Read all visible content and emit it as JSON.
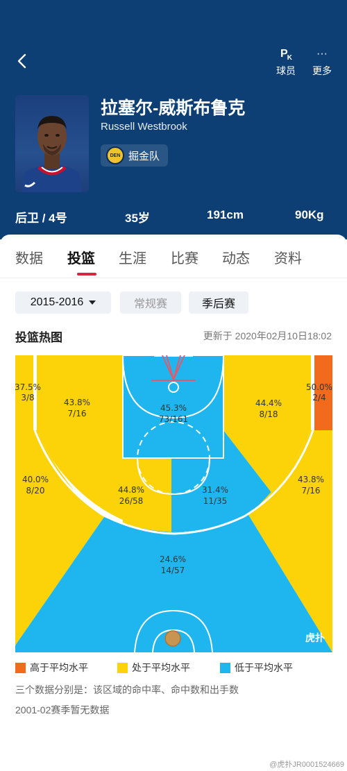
{
  "header": {
    "actions": [
      {
        "label": "球员",
        "icon": "pk-icon",
        "icon_text": "P",
        "icon_sub": "K"
      },
      {
        "label": "更多",
        "icon": "more-icon",
        "icon_text": "···"
      }
    ],
    "name_cn": "拉塞尔-威斯布鲁克",
    "name_en": "Russell Westbrook",
    "team": {
      "name": "掘金队",
      "logo_text": "DEN"
    },
    "stats": {
      "position": "后卫 / 4号",
      "age": "35岁",
      "height": "191cm",
      "weight": "90Kg"
    }
  },
  "tabs": [
    "数据",
    "投篮",
    "生涯",
    "比赛",
    "动态",
    "资料"
  ],
  "active_tab": "投篮",
  "filters": {
    "season": "2015-2016",
    "types": [
      "常规赛",
      "季后赛"
    ],
    "selected_type": "季后赛"
  },
  "chart": {
    "title": "投篮热图",
    "updated": "更新于 2020年02月10日18:02",
    "zones": [
      {
        "id": "left-corner-3",
        "pct": "37.5%",
        "made_att": "3/8",
        "level": "average"
      },
      {
        "id": "left-wing-mid",
        "pct": "43.8%",
        "made_att": "7/16",
        "level": "average"
      },
      {
        "id": "restricted-area",
        "pct": "45.3%",
        "made_att": "73/161",
        "level": "below"
      },
      {
        "id": "right-wing-mid",
        "pct": "44.4%",
        "made_att": "8/18",
        "level": "average"
      },
      {
        "id": "right-corner-3",
        "pct": "50.0%",
        "made_att": "2/4",
        "level": "above"
      },
      {
        "id": "left-wing-3",
        "pct": "40.0%",
        "made_att": "8/20",
        "level": "average"
      },
      {
        "id": "left-elbow",
        "pct": "44.8%",
        "made_att": "26/58",
        "level": "average"
      },
      {
        "id": "right-elbow",
        "pct": "31.4%",
        "made_att": "11/35",
        "level": "below"
      },
      {
        "id": "right-wing-3",
        "pct": "43.8%",
        "made_att": "7/16",
        "level": "average"
      },
      {
        "id": "top-key-3",
        "pct": "24.6%",
        "made_att": "14/57",
        "level": "below"
      }
    ],
    "court_watermark": "虎扑",
    "colors": {
      "above": "#f26b1d",
      "average": "#fbd308",
      "below": "#1fb6f0"
    }
  },
  "legend": [
    {
      "label": "高于平均水平",
      "color": "#f26b1d"
    },
    {
      "label": "处于平均水平",
      "color": "#fbd308"
    },
    {
      "label": "低于平均水平",
      "color": "#1fb6f0"
    }
  ],
  "notes": [
    "三个数据分别是：该区域的命中率、命中数和出手数",
    "2001-02赛季暂无数据"
  ],
  "watermark": "@虎扑JR0001524669"
}
